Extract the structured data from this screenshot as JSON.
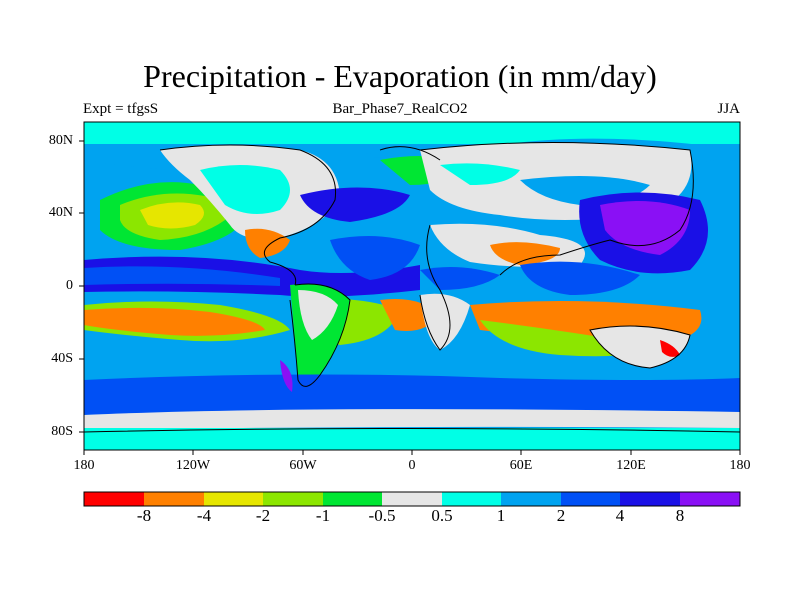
{
  "title": "Precipitation - Evaporation (in mm/day)",
  "left_label": "Expt = tfgsS",
  "center_label": "Bar_Phase7_RealCO2",
  "right_label": "JJA",
  "lat_ticks": [
    "80N",
    "40N",
    "0",
    "40S",
    "80S"
  ],
  "lon_ticks": [
    "180",
    "120W",
    "60W",
    "0",
    "60E",
    "120E",
    "180"
  ],
  "colorbar": {
    "colors": [
      "#ff0000",
      "#ff8000",
      "#e6e600",
      "#8ce600",
      "#00e633",
      "#e6e6e6",
      "#00ffe6",
      "#00a3f0",
      "#0050f5",
      "#1a10e6",
      "#8a10f5"
    ],
    "labels": [
      "-8",
      "-4",
      "-2",
      "-1",
      "-0.5",
      "0.5",
      "1",
      "2",
      "4",
      "8"
    ]
  }
}
